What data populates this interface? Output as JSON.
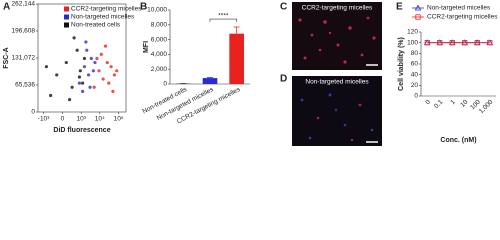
{
  "chart_data": [
    {
      "panel": "A",
      "type": "scatter",
      "x_label": "DiD fluorescence",
      "y_label": "FSC-A",
      "legend": "top-right",
      "xscale": "biexponential",
      "xlim": [
        -2000,
        250000
      ],
      "xticks": [
        {
          "value": -1000,
          "label": "-10³"
        },
        0,
        {
          "value": 1000,
          "label": "10³"
        },
        {
          "value": 10000,
          "label": "10⁴"
        },
        {
          "value": 100000,
          "label": "10⁵"
        }
      ],
      "ylim": [
        0,
        262144
      ],
      "yticks": [
        0,
        {
          "value": 65536,
          "label": "65,536"
        },
        {
          "value": 131072,
          "label": "131,072"
        },
        {
          "value": 196608,
          "label": "196,608"
        },
        {
          "value": 262144,
          "label": "262,144"
        }
      ],
      "series": [
        {
          "name": "CCR2-targeting micelles",
          "color": "#e8231f",
          "x": [
            5000,
            9000,
            15000,
            25000,
            40000,
            60000,
            12000,
            30000,
            80000,
            20000,
            7000,
            50000
          ],
          "values": [
            60000,
            100000,
            80000,
            120000,
            110000,
            90000,
            140000,
            70000,
            100000,
            160000,
            130000,
            50000
          ]
        },
        {
          "name": "Non-targeted micelles",
          "color": "#2a2ad0",
          "x": [
            800,
            1500,
            2500,
            3500,
            2000,
            4500,
            1200,
            3000,
            5500,
            1800
          ],
          "values": [
            70000,
            110000,
            90000,
            130000,
            150000,
            100000,
            50000,
            60000,
            120000,
            170000
          ]
        },
        {
          "name": "Non-treated cells",
          "color": "#111111",
          "x": [
            -400,
            -150,
            100,
            300,
            600,
            900,
            1200,
            -700,
            400,
            1500,
            200,
            800
          ],
          "values": [
            40000,
            90000,
            120000,
            60000,
            150000,
            100000,
            70000,
            110000,
            180000,
            130000,
            30000,
            85000
          ]
        }
      ]
    },
    {
      "panel": "B",
      "type": "bar",
      "y_label": "MFI",
      "categories": [
        "Non-treated cells",
        "Non-targeted micelles",
        "CCR2-targeting micelles"
      ],
      "values": [
        50,
        800,
        6800
      ],
      "errors": [
        20,
        100,
        900
      ],
      "colors": [
        "#333333",
        "#2a2ad0",
        "#e8231f"
      ],
      "ylim": [
        0,
        10000
      ],
      "yticks": [
        0,
        {
          "value": 2000,
          "label": "2,000"
        },
        {
          "value": 4000,
          "label": "4,000"
        },
        {
          "value": 6000,
          "label": "6,000"
        },
        {
          "value": 8000,
          "label": "8,000"
        },
        {
          "value": 10000,
          "label": "10,000"
        }
      ],
      "annotation": "****"
    },
    {
      "panel": "E",
      "type": "line",
      "x_label": "Conc. (nM)",
      "y_label": "Cell viability (%)",
      "legend": "top",
      "categories": [
        "0",
        "0.1",
        "1",
        "10",
        "100",
        "1,000"
      ],
      "ylim": [
        0,
        120
      ],
      "yticks": [
        0,
        20,
        40,
        60,
        80,
        100,
        120
      ],
      "series": [
        {
          "name": "Non-targeted micelles",
          "color": "#2a2ad0",
          "marker": "triangle",
          "values": [
            100,
            100,
            100,
            100,
            100,
            100
          ]
        },
        {
          "name": "CCR2-targeting micelles",
          "color": "#e8231f",
          "marker": "square",
          "values": [
            100,
            100,
            100,
            100,
            100,
            100
          ]
        }
      ]
    }
  ],
  "images": [
    {
      "panel": "C",
      "caption": "CCR2-targeting micelles"
    },
    {
      "panel": "D",
      "caption": "Non-targeted micelles"
    }
  ]
}
